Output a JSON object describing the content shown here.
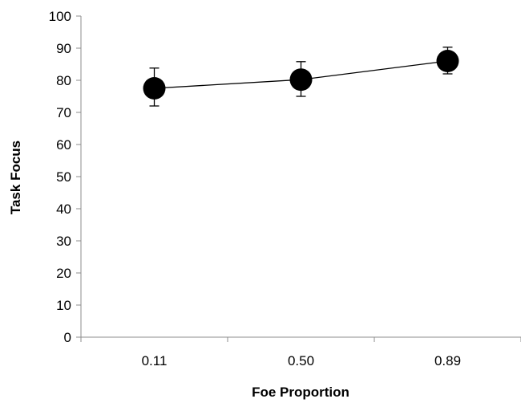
{
  "chart_data": {
    "type": "line",
    "xlabel": "Foe Proportion",
    "ylabel": "Task Focus",
    "categories": [
      "0.11",
      "0.50",
      "0.89"
    ],
    "ylim": [
      0,
      100
    ],
    "yticks": [
      0,
      10,
      20,
      30,
      40,
      50,
      60,
      70,
      80,
      90,
      100
    ],
    "grid": false,
    "series": [
      {
        "values": [
          77.5,
          80.2,
          86.0
        ],
        "error_low": [
          72.0,
          75.0,
          82.0
        ],
        "error_high": [
          83.8,
          85.8,
          90.3
        ],
        "color": "#000000",
        "marker": "circle"
      }
    ]
  }
}
